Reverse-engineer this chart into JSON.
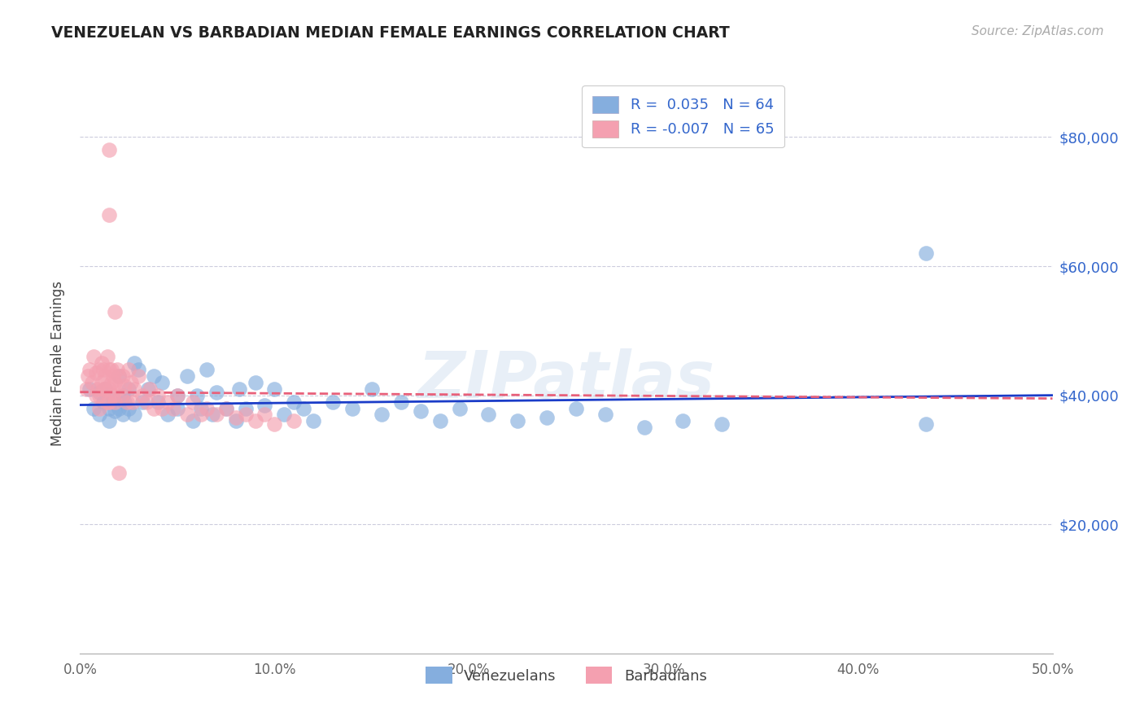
{
  "title": "VENEZUELAN VS BARBADIAN MEDIAN FEMALE EARNINGS CORRELATION CHART",
  "source": "Source: ZipAtlas.com",
  "ylabel": "Median Female Earnings",
  "xlim": [
    0.0,
    0.5
  ],
  "ylim": [
    0,
    90000
  ],
  "yticks": [
    20000,
    40000,
    60000,
    80000
  ],
  "ytick_labels": [
    "$20,000",
    "$40,000",
    "$60,000",
    "$80,000"
  ],
  "xticks": [
    0.0,
    0.1,
    0.2,
    0.3,
    0.4,
    0.5
  ],
  "xtick_labels": [
    "0.0%",
    "10.0%",
    "20.0%",
    "30.0%",
    "40.0%",
    "50.0%"
  ],
  "legend_labels": [
    "Venezuelans",
    "Barbadians"
  ],
  "blue_color": "#85AEDE",
  "pink_color": "#F4A0B0",
  "blue_line_color": "#1A3CC8",
  "pink_line_color": "#E8607A",
  "grid_color": "#CCCCDD",
  "watermark": "ZIPatlas",
  "r_blue": 0.035,
  "n_blue": 64,
  "r_pink": -0.007,
  "n_pink": 65,
  "blue_scatter_x": [
    0.005,
    0.007,
    0.01,
    0.01,
    0.012,
    0.013,
    0.015,
    0.015,
    0.017,
    0.018,
    0.02,
    0.02,
    0.022,
    0.022,
    0.023,
    0.025,
    0.025,
    0.028,
    0.028,
    0.03,
    0.032,
    0.035,
    0.038,
    0.04,
    0.042,
    0.045,
    0.05,
    0.05,
    0.055,
    0.058,
    0.06,
    0.062,
    0.065,
    0.068,
    0.07,
    0.075,
    0.08,
    0.082,
    0.085,
    0.09,
    0.095,
    0.1,
    0.105,
    0.11,
    0.115,
    0.12,
    0.13,
    0.14,
    0.15,
    0.155,
    0.165,
    0.175,
    0.185,
    0.195,
    0.21,
    0.225,
    0.24,
    0.255,
    0.27,
    0.29,
    0.31,
    0.33,
    0.435,
    0.435
  ],
  "blue_scatter_y": [
    41000,
    38000,
    40500,
    37000,
    39000,
    41000,
    38000,
    36000,
    39500,
    37500,
    43000,
    38000,
    40000,
    37000,
    39000,
    41000,
    38000,
    45000,
    37000,
    44000,
    39000,
    41000,
    43000,
    39000,
    42000,
    37000,
    40000,
    38000,
    43000,
    36000,
    40000,
    38000,
    44000,
    37000,
    40500,
    38000,
    36000,
    41000,
    38000,
    42000,
    38500,
    41000,
    37000,
    39000,
    38000,
    36000,
    39000,
    38000,
    41000,
    37000,
    39000,
    37500,
    36000,
    38000,
    37000,
    36000,
    36500,
    38000,
    37000,
    35000,
    36000,
    35500,
    62000,
    35500
  ],
  "pink_scatter_x": [
    0.003,
    0.004,
    0.005,
    0.006,
    0.007,
    0.008,
    0.008,
    0.009,
    0.01,
    0.01,
    0.01,
    0.011,
    0.011,
    0.012,
    0.012,
    0.013,
    0.013,
    0.014,
    0.014,
    0.015,
    0.015,
    0.015,
    0.016,
    0.016,
    0.017,
    0.017,
    0.018,
    0.018,
    0.019,
    0.02,
    0.02,
    0.021,
    0.022,
    0.023,
    0.024,
    0.025,
    0.026,
    0.027,
    0.028,
    0.03,
    0.032,
    0.034,
    0.036,
    0.038,
    0.04,
    0.042,
    0.045,
    0.048,
    0.05,
    0.055,
    0.058,
    0.062,
    0.065,
    0.07,
    0.075,
    0.08,
    0.085,
    0.09,
    0.095,
    0.1,
    0.11,
    0.015,
    0.015,
    0.018,
    0.02
  ],
  "pink_scatter_y": [
    41000,
    43000,
    44000,
    42000,
    46000,
    40000,
    43500,
    41000,
    44000,
    40000,
    38000,
    45000,
    42000,
    41000,
    44000,
    43000,
    41000,
    46000,
    39000,
    44000,
    41000,
    39000,
    44000,
    42000,
    43000,
    40000,
    42000,
    39000,
    44000,
    43000,
    41000,
    40000,
    43000,
    41500,
    39000,
    44000,
    42000,
    39000,
    41000,
    43000,
    40000,
    39000,
    41000,
    38000,
    40000,
    38000,
    39000,
    38000,
    40000,
    37000,
    39000,
    37000,
    38000,
    37000,
    38000,
    36500,
    37000,
    36000,
    37000,
    35500,
    36000,
    78000,
    68000,
    53000,
    28000
  ]
}
